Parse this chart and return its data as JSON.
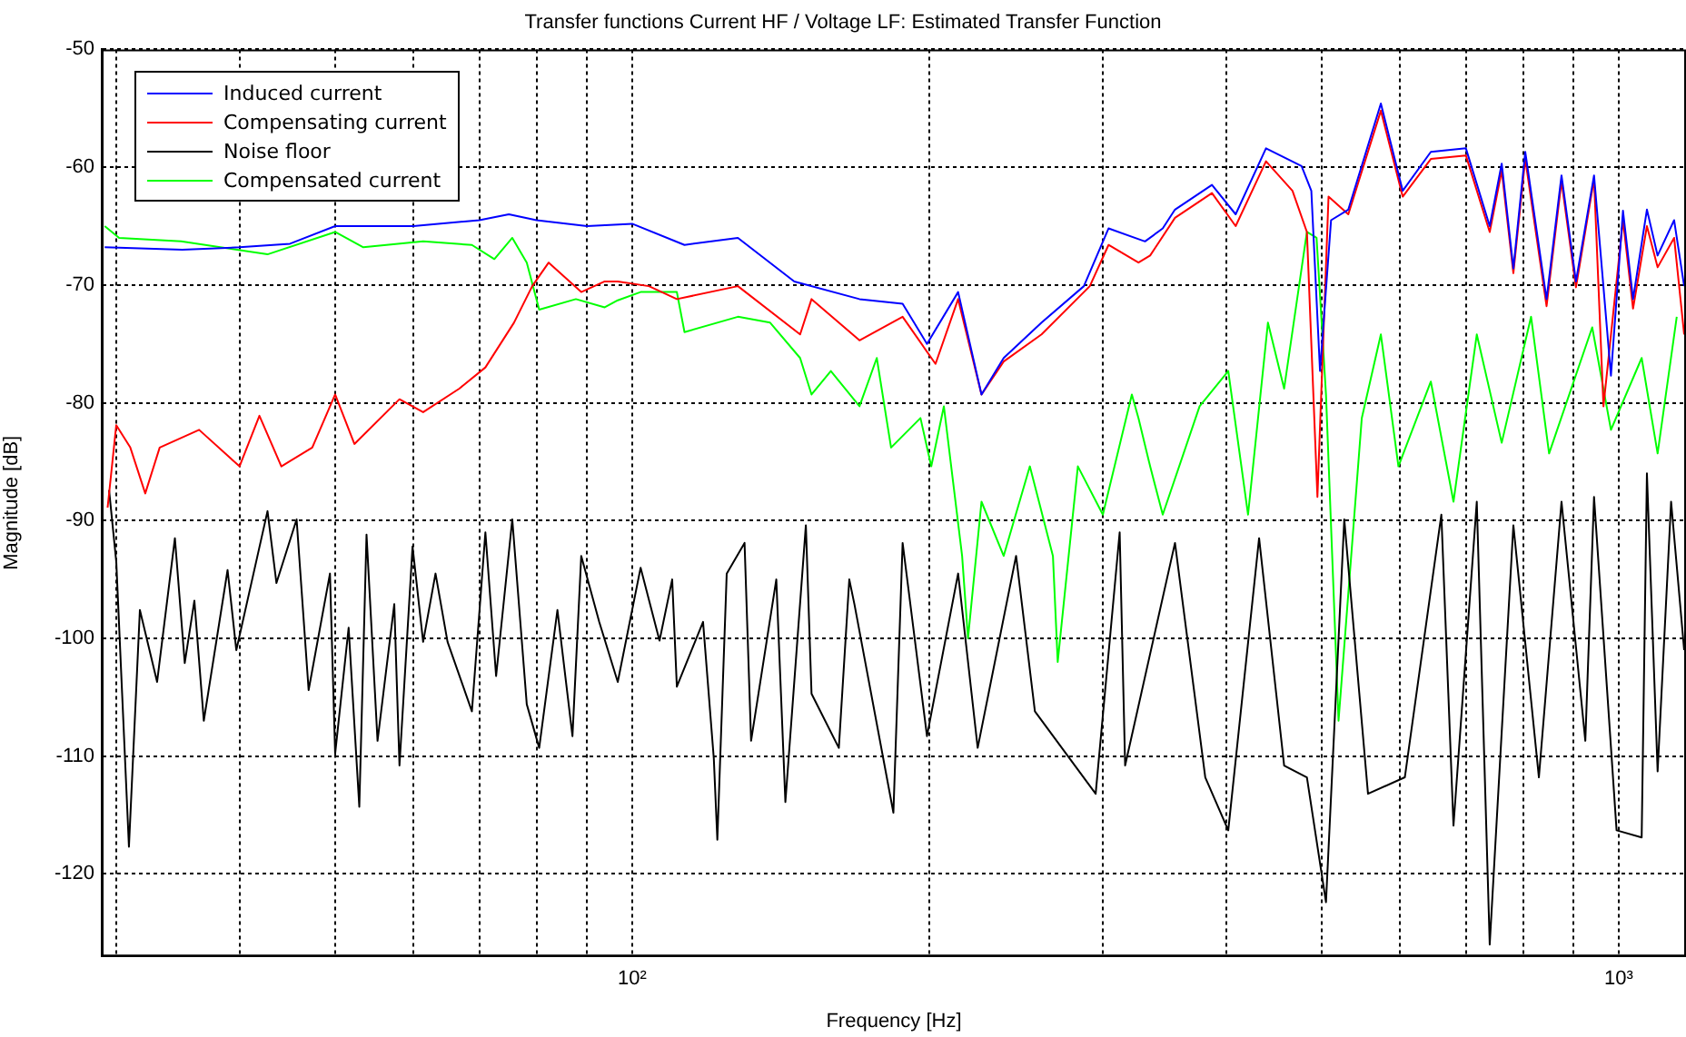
{
  "chart_data": {
    "type": "line",
    "title": "Transfer functions Current HF / Voltage LF: Estimated Transfer Function",
    "xlabel": "Frequency [Hz]",
    "ylabel": "Magnitude [dB]",
    "log": "x",
    "grid": true,
    "legend": "top left",
    "line_style": "solid",
    "marker": "none",
    "xlim": [
      29,
      1170
    ],
    "ylim": [
      -127,
      -50
    ],
    "xticks": [
      {
        "value": 30,
        "label": null
      },
      {
        "value": 40,
        "label": null
      },
      {
        "value": 50,
        "label": null
      },
      {
        "value": 60,
        "label": null
      },
      {
        "value": 70,
        "label": null
      },
      {
        "value": 80,
        "label": null
      },
      {
        "value": 90,
        "label": null
      },
      {
        "value": 100,
        "label": "10²"
      },
      {
        "value": 200,
        "label": null
      },
      {
        "value": 300,
        "label": null
      },
      {
        "value": 400,
        "label": null
      },
      {
        "value": 500,
        "label": null
      },
      {
        "value": 600,
        "label": null
      },
      {
        "value": 700,
        "label": null
      },
      {
        "value": 800,
        "label": null
      },
      {
        "value": 900,
        "label": null
      },
      {
        "value": 1000,
        "label": "10³"
      }
    ],
    "yticks": [
      -120,
      -110,
      -100,
      -90,
      -80,
      -70,
      -60,
      -50
    ],
    "series": [
      {
        "name": "Induced current",
        "color": "#0000ff",
        "x": [
          29.2,
          35,
          40,
          45,
          50,
          60,
          70,
          75,
          80,
          90,
          100,
          113,
          128,
          146,
          170,
          188,
          199,
          214,
          226,
          238,
          260,
          287,
          304,
          331,
          345,
          355,
          387,
          409,
          439,
          477,
          488,
          498,
          511,
          532,
          574,
          604,
          645,
          700,
          740,
          761,
          782,
          804,
          845,
          875,
          905,
          944,
          982,
          1010,
          1034,
          1068,
          1095,
          1138,
          1165
        ],
        "values": [
          -66.8,
          -67,
          -66.8,
          -66.5,
          -65,
          -65,
          -64.5,
          -64,
          -64.5,
          -65,
          -64.8,
          -66.6,
          -66,
          -69.7,
          -71.2,
          -71.6,
          -75,
          -70.6,
          -79.3,
          -76.2,
          -73.2,
          -70.1,
          -65.2,
          -66.3,
          -65.2,
          -63.6,
          -61.5,
          -64,
          -58.4,
          -59.9,
          -62,
          -77.3,
          -64.5,
          -63.6,
          -54.6,
          -62,
          -58.7,
          -58.4,
          -65,
          -59.7,
          -68.6,
          -58.7,
          -71.2,
          -60.7,
          -69.7,
          -60.7,
          -77.7,
          -63.7,
          -71.2,
          -63.6,
          -67.5,
          -64.5,
          -70.1
        ]
      },
      {
        "name": "Compensating current",
        "color": "#ff0000",
        "x": [
          29.4,
          30,
          31,
          32.1,
          33.2,
          36.4,
          40,
          41.9,
          44.1,
          47.4,
          50,
          52.3,
          58.1,
          61.4,
          66.8,
          71,
          75.9,
          79.2,
          82.3,
          88.8,
          93.8,
          96.7,
          104,
          111,
          128,
          148,
          152,
          170,
          188,
          203,
          214,
          226,
          238,
          260,
          291,
          304,
          326,
          335,
          355,
          387,
          409,
          439,
          467,
          483,
          495,
          508,
          532,
          574,
          604,
          645,
          700,
          740,
          761,
          782,
          804,
          845,
          875,
          905,
          944,
          965,
          1010,
          1034,
          1068,
          1095,
          1138,
          1165
        ],
        "values": [
          -88.9,
          -81.9,
          -83.8,
          -87.7,
          -83.8,
          -82.3,
          -85.4,
          -81.1,
          -85.4,
          -83.8,
          -79.3,
          -83.5,
          -79.7,
          -80.8,
          -78.8,
          -77,
          -73.2,
          -70.1,
          -68.1,
          -70.6,
          -69.7,
          -69.7,
          -70.1,
          -71.2,
          -70.1,
          -74.2,
          -71.2,
          -74.7,
          -72.7,
          -76.7,
          -71.2,
          -79.3,
          -76.5,
          -74.2,
          -70.1,
          -66.6,
          -68.1,
          -67.5,
          -64.3,
          -62.2,
          -65,
          -59.5,
          -62,
          -65.5,
          -88,
          -62.5,
          -64,
          -55.2,
          -62.5,
          -59.3,
          -59,
          -65.5,
          -60.3,
          -69,
          -59.3,
          -71.8,
          -61.2,
          -70.2,
          -61,
          -80.3,
          -64.5,
          -72,
          -65,
          -68.5,
          -66,
          -74.2
        ]
      },
      {
        "name": "Noise floor",
        "color": "#000000",
        "x": [
          29.5,
          30,
          30.9,
          31.7,
          33,
          34.4,
          35.2,
          36,
          36.8,
          38.9,
          39.7,
          42.7,
          43.6,
          45.7,
          47,
          49.4,
          50,
          51.6,
          52.9,
          53.8,
          55.2,
          57.4,
          58.1,
          59.9,
          61.4,
          63.2,
          65,
          68.8,
          71,
          72.8,
          75.6,
          78.2,
          80.5,
          84,
          87,
          88.8,
          92.6,
          96.7,
          102,
          106.6,
          109.8,
          111,
          118,
          121,
          122,
          124.7,
          130,
          132,
          140,
          143,
          150,
          152,
          162,
          166,
          168,
          184,
          188,
          199,
          214,
          224,
          245,
          256,
          295,
          312,
          316,
          355,
          381,
          402,
          432,
          458,
          483,
          505,
          527,
          557,
          607,
          661,
          680,
          718,
          740,
          782,
          830,
          875,
          925,
          944,
          995,
          1055,
          1068,
          1095,
          1130,
          1165
        ],
        "values": [
          -87.4,
          -93.5,
          -117.7,
          -97.6,
          -103.7,
          -91.5,
          -102.1,
          -96.8,
          -107,
          -94.2,
          -101,
          -89.2,
          -95.3,
          -89.9,
          -104.4,
          -94.5,
          -109.8,
          -99.1,
          -114.3,
          -91.2,
          -108.7,
          -97.1,
          -110.8,
          -92.2,
          -100.3,
          -94.5,
          -100.3,
          -106.2,
          -91,
          -103.2,
          -89.9,
          -105.6,
          -109.3,
          -97.6,
          -108.3,
          -93,
          -98.6,
          -103.7,
          -94,
          -100.2,
          -95,
          -104.1,
          -98.6,
          -110.2,
          -117.1,
          -94.5,
          -91.9,
          -108.7,
          -95,
          -113.9,
          -90.4,
          -104.7,
          -109.3,
          -95,
          -97.1,
          -114.8,
          -91.9,
          -108.3,
          -94.5,
          -109.3,
          -93,
          -106.2,
          -113.2,
          -91,
          -110.8,
          -91.9,
          -111.8,
          -116.3,
          -91.5,
          -110.8,
          -111.8,
          -122.4,
          -89.9,
          -113.2,
          -111.8,
          -89.5,
          -115.9,
          -88.4,
          -126,
          -90.4,
          -111.8,
          -88.4,
          -108.7,
          -88,
          -116.3,
          -116.9,
          -86,
          -111.3,
          -88.4,
          -101
        ]
      },
      {
        "name": "Compensated current",
        "color": "#00ff00",
        "x": [
          29.2,
          30.2,
          34.9,
          42.7,
          50,
          53.4,
          61.4,
          68.8,
          72.5,
          75.6,
          78.2,
          80.5,
          87.7,
          93.8,
          96.7,
          102,
          111,
          113,
          128,
          138,
          148,
          152,
          159,
          170,
          177,
          183,
          196,
          201,
          207,
          216,
          219,
          226,
          238,
          253,
          267,
          270,
          283,
          300,
          321,
          326,
          335,
          345,
          376,
          402,
          421,
          441,
          458,
          483,
          494,
          505,
          520,
          549,
          574,
          598,
          645,
          680,
          718,
          761,
          815,
          850,
          940,
          982,
          1055,
          1095,
          1145
        ],
        "values": [
          -65,
          -66,
          -66.3,
          -67.4,
          -65.5,
          -66.8,
          -66.3,
          -66.6,
          -67.8,
          -66,
          -68.1,
          -72.1,
          -71.2,
          -71.9,
          -71.3,
          -70.6,
          -70.6,
          -74,
          -72.7,
          -73.2,
          -76.2,
          -79.3,
          -77.3,
          -80.3,
          -76.2,
          -83.8,
          -81.3,
          -85.4,
          -80.3,
          -93,
          -100,
          -88.4,
          -93,
          -85.4,
          -93,
          -102,
          -85.4,
          -89.5,
          -79.3,
          -81.3,
          -85.4,
          -89.5,
          -80.3,
          -77.3,
          -89.5,
          -73.2,
          -78.8,
          -65.5,
          -66,
          -79.3,
          -107,
          -81.3,
          -74.2,
          -85.4,
          -78.2,
          -88.4,
          -74.2,
          -83.4,
          -72.7,
          -84.3,
          -73.6,
          -82.3,
          -76.2,
          -84.3,
          -72.7
        ]
      }
    ]
  }
}
